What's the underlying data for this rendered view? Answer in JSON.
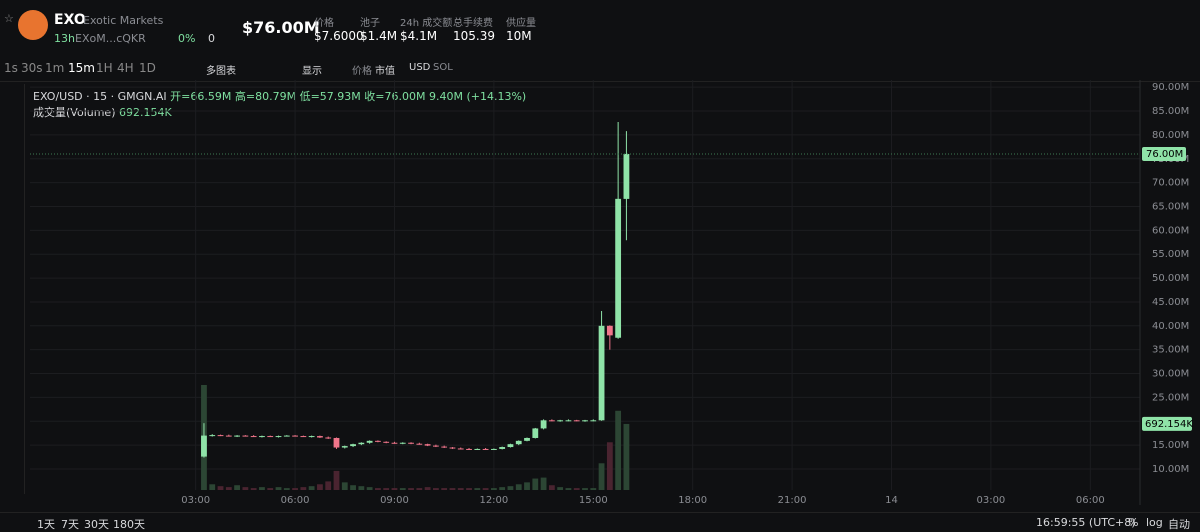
{
  "header": {
    "symbol": "EXO",
    "name": "Exotic Markets",
    "age": "13h",
    "address": "EXoM...cQKR",
    "holders_pct": "0%",
    "count": "0",
    "market_cap": "$76.00M",
    "stats": [
      {
        "label": "价格",
        "value": "$7.6000"
      },
      {
        "label": "池子",
        "value": "$1.4M"
      },
      {
        "label": "24h 成交额",
        "value": "$4.1M"
      },
      {
        "label": "总手续费",
        "value": "105.39"
      },
      {
        "label": "供应量",
        "value": "10M"
      }
    ]
  },
  "toolbar": {
    "intervals": [
      "1s",
      "30s",
      "1m",
      "15m",
      "1H",
      "4H",
      "1D"
    ],
    "multi": "多图表",
    "display": "显示",
    "price_mcap": [
      "价格",
      "市值"
    ],
    "currency": [
      "USD",
      "SOL"
    ]
  },
  "legend": {
    "pair": "EXO/USD · 15 · GMGN.AI",
    "open": "开=66.59M",
    "high": "高=80.79M",
    "low": "低=57.93M",
    "close": "收=76.00M",
    "change": "9.40M (+14.13%)"
  },
  "footer": {
    "ranges": [
      "1天",
      "7天",
      "30天",
      "180天"
    ],
    "clock": "16:59:55 (UTC+8)",
    "pct": "%",
    "log": "log",
    "auto": "自动"
  },
  "chart_data": {
    "type": "candlestick",
    "ylim": [
      5.6,
      91.5
    ],
    "xlim": [
      -2,
      31.5
    ],
    "yticks": [
      {
        "value": 10,
        "label": "10.00M"
      },
      {
        "value": 15,
        "label": "15.00M"
      },
      {
        "value": 20,
        "label": "20.00M"
      },
      {
        "value": 25,
        "label": "25.00M"
      },
      {
        "value": 30,
        "label": "30.00M"
      },
      {
        "value": 35,
        "label": "35.00M"
      },
      {
        "value": 40,
        "label": "40.00M"
      },
      {
        "value": 45,
        "label": "45.00M"
      },
      {
        "value": 50,
        "label": "50.00M"
      },
      {
        "value": 55,
        "label": "55.00M"
      },
      {
        "value": 60,
        "label": "60.00M"
      },
      {
        "value": 65,
        "label": "65.00M"
      },
      {
        "value": 70,
        "label": "70.00M"
      },
      {
        "value": 75,
        "label": "75.00M"
      },
      {
        "value": 80,
        "label": "80.00M"
      },
      {
        "value": 85,
        "label": "85.00M"
      },
      {
        "value": 90,
        "label": "90.00M"
      }
    ],
    "xticks": [
      {
        "value": 3,
        "label": "03:00"
      },
      {
        "value": 6,
        "label": "06:00"
      },
      {
        "value": 9,
        "label": "09:00"
      },
      {
        "value": 12,
        "label": "12:00"
      },
      {
        "value": 15,
        "label": "15:00"
      },
      {
        "value": 18,
        "label": "18:00"
      },
      {
        "value": 21,
        "label": "21:00"
      },
      {
        "value": 24,
        "label": "14"
      },
      {
        "value": 27,
        "label": "03:00"
      },
      {
        "value": 30,
        "label": "06:00"
      }
    ],
    "last_price": {
      "value": 76,
      "label": "76.00M"
    },
    "up_color": "#8fe3a8",
    "down_color": "#f0758a",
    "candles": [
      {
        "x": 3.25,
        "o": 12.6,
        "h": 19.6,
        "l": 12.4,
        "c": 17.0
      },
      {
        "x": 3.5,
        "o": 17.0,
        "h": 17.3,
        "l": 16.8,
        "c": 17.1
      },
      {
        "x": 3.75,
        "o": 17.1,
        "h": 17.2,
        "l": 16.9,
        "c": 17.0
      },
      {
        "x": 4.0,
        "o": 17.0,
        "h": 17.2,
        "l": 16.8,
        "c": 16.9
      },
      {
        "x": 4.25,
        "o": 16.9,
        "h": 17.1,
        "l": 16.7,
        "c": 17.0
      },
      {
        "x": 4.5,
        "o": 17.0,
        "h": 17.1,
        "l": 16.8,
        "c": 16.9
      },
      {
        "x": 4.75,
        "o": 16.9,
        "h": 17.1,
        "l": 16.7,
        "c": 16.8
      },
      {
        "x": 5.0,
        "o": 16.8,
        "h": 17.0,
        "l": 16.6,
        "c": 16.9
      },
      {
        "x": 5.25,
        "o": 16.9,
        "h": 17.0,
        "l": 16.7,
        "c": 16.8
      },
      {
        "x": 5.5,
        "o": 16.8,
        "h": 17.0,
        "l": 16.6,
        "c": 16.9
      },
      {
        "x": 5.75,
        "o": 16.9,
        "h": 17.1,
        "l": 16.8,
        "c": 17.0
      },
      {
        "x": 6.0,
        "o": 17.0,
        "h": 17.1,
        "l": 16.8,
        "c": 16.9
      },
      {
        "x": 6.25,
        "o": 16.9,
        "h": 17.0,
        "l": 16.7,
        "c": 16.8
      },
      {
        "x": 6.5,
        "o": 16.8,
        "h": 17.0,
        "l": 16.6,
        "c": 16.9
      },
      {
        "x": 6.75,
        "o": 16.9,
        "h": 17.0,
        "l": 16.5,
        "c": 16.6
      },
      {
        "x": 7.0,
        "o": 16.6,
        "h": 16.8,
        "l": 16.3,
        "c": 16.5
      },
      {
        "x": 7.25,
        "o": 16.5,
        "h": 16.6,
        "l": 14.2,
        "c": 14.5
      },
      {
        "x": 7.5,
        "o": 14.5,
        "h": 14.9,
        "l": 14.3,
        "c": 14.8
      },
      {
        "x": 7.75,
        "o": 14.8,
        "h": 15.3,
        "l": 14.6,
        "c": 15.2
      },
      {
        "x": 8.0,
        "o": 15.2,
        "h": 15.6,
        "l": 15.0,
        "c": 15.5
      },
      {
        "x": 8.25,
        "o": 15.5,
        "h": 16.0,
        "l": 15.3,
        "c": 15.9
      },
      {
        "x": 8.5,
        "o": 15.9,
        "h": 16.0,
        "l": 15.6,
        "c": 15.7
      },
      {
        "x": 8.75,
        "o": 15.7,
        "h": 15.8,
        "l": 15.4,
        "c": 15.5
      },
      {
        "x": 9.0,
        "o": 15.5,
        "h": 15.7,
        "l": 15.3,
        "c": 15.4
      },
      {
        "x": 9.25,
        "o": 15.4,
        "h": 15.6,
        "l": 15.2,
        "c": 15.5
      },
      {
        "x": 9.5,
        "o": 15.5,
        "h": 15.6,
        "l": 15.2,
        "c": 15.3
      },
      {
        "x": 9.75,
        "o": 15.3,
        "h": 15.5,
        "l": 15.1,
        "c": 15.2
      },
      {
        "x": 10.0,
        "o": 15.2,
        "h": 15.3,
        "l": 14.8,
        "c": 14.9
      },
      {
        "x": 10.25,
        "o": 14.9,
        "h": 15.1,
        "l": 14.6,
        "c": 14.7
      },
      {
        "x": 10.5,
        "o": 14.7,
        "h": 14.9,
        "l": 14.4,
        "c": 14.5
      },
      {
        "x": 10.75,
        "o": 14.5,
        "h": 14.6,
        "l": 14.2,
        "c": 14.3
      },
      {
        "x": 11.0,
        "o": 14.3,
        "h": 14.5,
        "l": 14.1,
        "c": 14.2
      },
      {
        "x": 11.25,
        "o": 14.2,
        "h": 14.4,
        "l": 14.0,
        "c": 14.1
      },
      {
        "x": 11.5,
        "o": 14.1,
        "h": 14.3,
        "l": 14.0,
        "c": 14.2
      },
      {
        "x": 11.75,
        "o": 14.2,
        "h": 14.4,
        "l": 14.0,
        "c": 14.1
      },
      {
        "x": 12.0,
        "o": 14.1,
        "h": 14.3,
        "l": 14.0,
        "c": 14.2
      },
      {
        "x": 12.25,
        "o": 14.2,
        "h": 14.7,
        "l": 14.1,
        "c": 14.6
      },
      {
        "x": 12.5,
        "o": 14.6,
        "h": 15.3,
        "l": 14.5,
        "c": 15.2
      },
      {
        "x": 12.75,
        "o": 15.2,
        "h": 16.0,
        "l": 15.0,
        "c": 15.9
      },
      {
        "x": 13.0,
        "o": 15.9,
        "h": 16.6,
        "l": 15.8,
        "c": 16.5
      },
      {
        "x": 13.25,
        "o": 16.5,
        "h": 18.6,
        "l": 16.4,
        "c": 18.5
      },
      {
        "x": 13.5,
        "o": 18.5,
        "h": 20.4,
        "l": 18.3,
        "c": 20.2
      },
      {
        "x": 13.75,
        "o": 20.2,
        "h": 20.4,
        "l": 20.0,
        "c": 20.1
      },
      {
        "x": 14.0,
        "o": 20.1,
        "h": 20.3,
        "l": 19.9,
        "c": 20.2
      },
      {
        "x": 14.25,
        "o": 20.2,
        "h": 20.4,
        "l": 20.0,
        "c": 20.2
      },
      {
        "x": 14.5,
        "o": 20.2,
        "h": 20.3,
        "l": 20.0,
        "c": 20.1
      },
      {
        "x": 14.75,
        "o": 20.1,
        "h": 20.3,
        "l": 19.9,
        "c": 20.2
      },
      {
        "x": 15.0,
        "o": 20.2,
        "h": 20.4,
        "l": 20.0,
        "c": 20.2
      },
      {
        "x": 15.25,
        "o": 20.2,
        "h": 43.1,
        "l": 20.1,
        "c": 40.0
      },
      {
        "x": 15.5,
        "o": 40.0,
        "h": 40.1,
        "l": 35.0,
        "c": 38.0
      },
      {
        "x": 15.75,
        "o": 37.5,
        "h": 82.7,
        "l": 37.3,
        "c": 66.6
      },
      {
        "x": 16.0,
        "o": 66.59,
        "h": 80.79,
        "l": 57.93,
        "c": 76.0
      }
    ],
    "volume": {
      "name": "成交量(Volume)",
      "last_label": "692.154K",
      "values": [
        1100000,
        60000,
        40000,
        30000,
        50000,
        30000,
        20000,
        30000,
        20000,
        30000,
        20000,
        20000,
        30000,
        40000,
        60000,
        90000,
        200000,
        80000,
        50000,
        40000,
        30000,
        20000,
        20000,
        20000,
        20000,
        20000,
        20000,
        30000,
        20000,
        20000,
        20000,
        20000,
        20000,
        20000,
        20000,
        20000,
        30000,
        40000,
        60000,
        80000,
        120000,
        130000,
        50000,
        30000,
        20000,
        20000,
        20000,
        20000,
        280000,
        500000,
        830000,
        692154
      ]
    }
  }
}
